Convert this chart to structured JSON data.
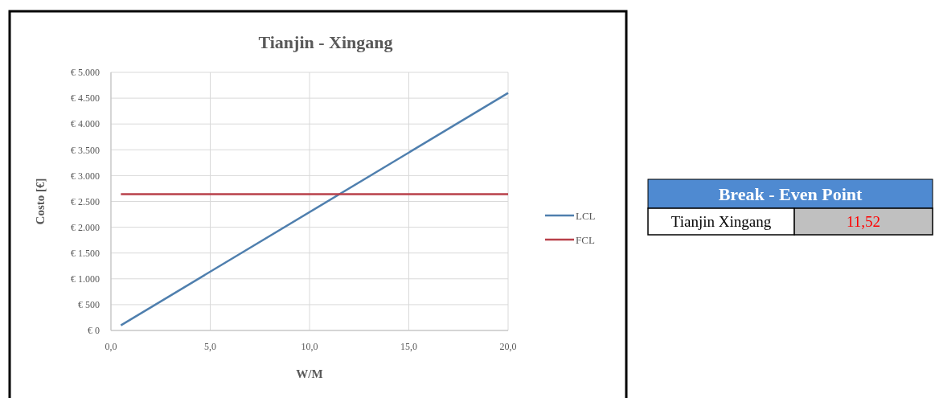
{
  "chart_data": [
    {
      "type": "line",
      "title": "Tianjin - Xingang",
      "xlabel": "W/M",
      "ylabel": "Costo [€]",
      "x": [
        0.5,
        20
      ],
      "series": [
        {
          "name": "LCL",
          "color": "#4f7fae",
          "values": [
            100,
            4600
          ]
        },
        {
          "name": "FCL",
          "color": "#b8404a",
          "values": [
            2640,
            2640
          ]
        }
      ],
      "xlim": [
        0,
        20
      ],
      "xticks": [
        {
          "value": 0,
          "label": "0,0"
        },
        {
          "value": 5,
          "label": "5,0"
        },
        {
          "value": 10,
          "label": "10,0"
        },
        {
          "value": 15,
          "label": "15,0"
        },
        {
          "value": 20,
          "label": "20,0"
        }
      ],
      "ylim": [
        0,
        5000
      ],
      "yticks": [
        {
          "value": 0,
          "label": "€ 0"
        },
        {
          "value": 500,
          "label": "€ 500"
        },
        {
          "value": 1000,
          "label": "€ 1.000"
        },
        {
          "value": 1500,
          "label": "€ 1.500"
        },
        {
          "value": 2000,
          "label": "€ 2.000"
        },
        {
          "value": 2500,
          "label": "€ 2.500"
        },
        {
          "value": 3000,
          "label": "€ 3.000"
        },
        {
          "value": 3500,
          "label": "€ 3.500"
        },
        {
          "value": 4000,
          "label": "€ 4.000"
        },
        {
          "value": 4500,
          "label": "€ 4.500"
        },
        {
          "value": 5000,
          "label": "€ 5.000"
        }
      ],
      "grid": true,
      "legend": "right",
      "marker": "none",
      "line_style": "solid"
    },
    {
      "type": "other",
      "title": "Break - Even Point",
      "annotations": [
        "Tianjin Xingang",
        "11,52"
      ],
      "color": "#c0c0c0"
    }
  ]
}
